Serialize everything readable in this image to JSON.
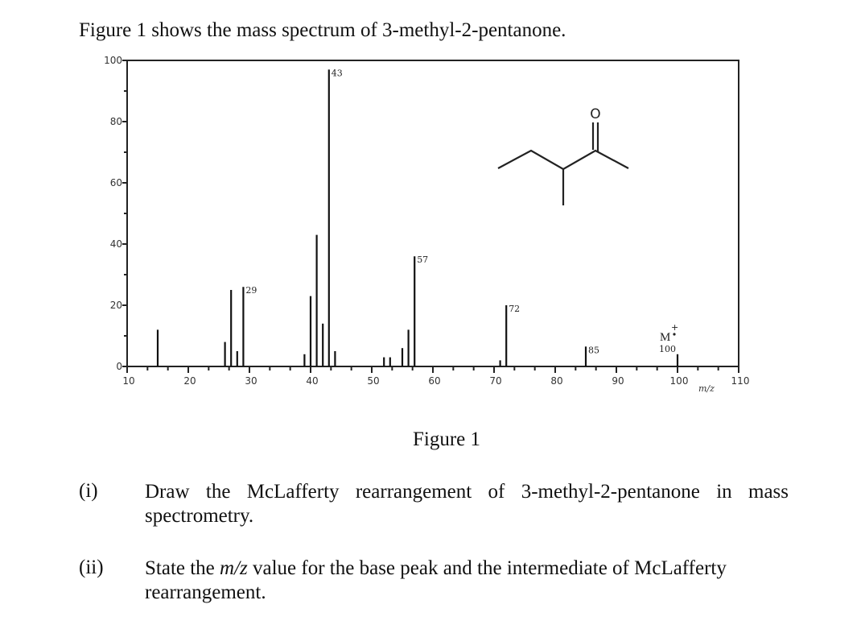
{
  "intro": "Figure 1 shows the mass spectrum of 3-methyl-2-pentanone.",
  "figure_caption": "Figure 1",
  "questions": [
    {
      "number": "(i)",
      "text": "Draw the McLafferty rearrangement of 3-methyl-2-pentanone in mass spectrometry."
    },
    {
      "number": "(ii)",
      "text_before": "State the ",
      "text_italic": "m/z",
      "text_after": " value for the base peak and the intermediate of McLafferty rearrangement."
    }
  ],
  "chart_data": {
    "type": "bar",
    "title": "",
    "xlabel": "m/z",
    "ylabel": "",
    "xlim": [
      10,
      110
    ],
    "ylim": [
      0,
      100
    ],
    "xticks": [
      10,
      20,
      30,
      40,
      50,
      60,
      70,
      80,
      90,
      100,
      110
    ],
    "yticks": [
      0,
      20,
      40,
      60,
      80,
      100
    ],
    "grid": false,
    "peaks": [
      {
        "mz": 15,
        "intensity": 12
      },
      {
        "mz": 26,
        "intensity": 8
      },
      {
        "mz": 27,
        "intensity": 25
      },
      {
        "mz": 28,
        "intensity": 5
      },
      {
        "mz": 29,
        "intensity": 26,
        "label": "29"
      },
      {
        "mz": 39,
        "intensity": 4
      },
      {
        "mz": 40,
        "intensity": 23
      },
      {
        "mz": 41,
        "intensity": 43
      },
      {
        "mz": 42,
        "intensity": 14
      },
      {
        "mz": 43,
        "intensity": 97,
        "label": "43"
      },
      {
        "mz": 44,
        "intensity": 5
      },
      {
        "mz": 52,
        "intensity": 3
      },
      {
        "mz": 53,
        "intensity": 3
      },
      {
        "mz": 55,
        "intensity": 6
      },
      {
        "mz": 56,
        "intensity": 12
      },
      {
        "mz": 57,
        "intensity": 36,
        "label": "57"
      },
      {
        "mz": 71,
        "intensity": 2
      },
      {
        "mz": 72,
        "intensity": 20,
        "label": "72"
      },
      {
        "mz": 85,
        "intensity": 6.5,
        "label": "85"
      },
      {
        "mz": 100,
        "intensity": 4,
        "label": "100"
      }
    ],
    "annotations": {
      "molecular_ion": "M",
      "molecular_ion_charge": "+",
      "structure_atom": "O"
    }
  }
}
